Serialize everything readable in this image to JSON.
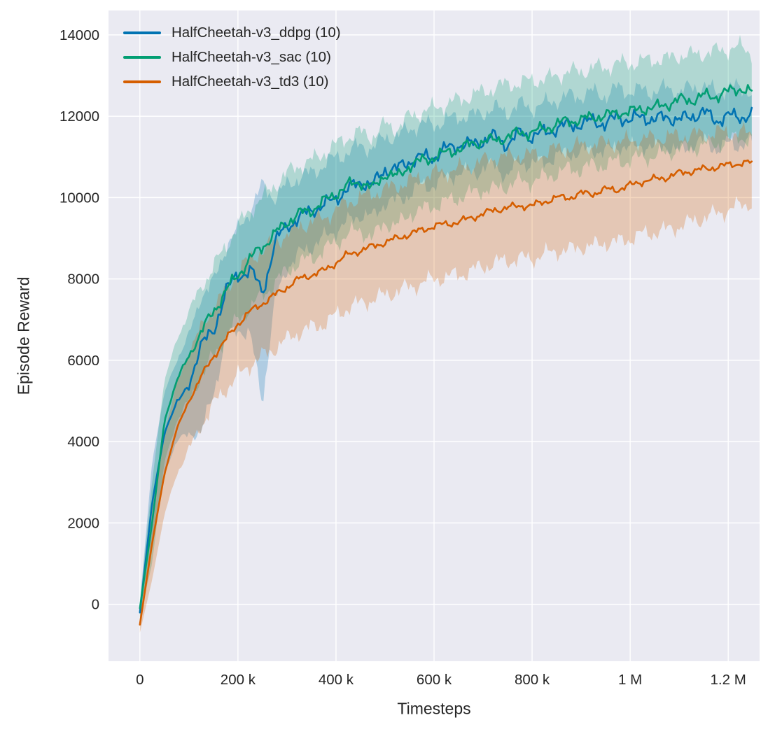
{
  "figure": {
    "background": "#ffffff",
    "plot_background": "#eaeaf2",
    "grid_color": "#ffffff",
    "text_color": "#262626"
  },
  "chart_data": {
    "type": "line",
    "title": "",
    "xlabel": "Timesteps",
    "ylabel": "Episode Reward",
    "grid": true,
    "legend_position": "upper left",
    "xlim": [
      -64000,
      1264000
    ],
    "ylim": [
      -1400,
      14600
    ],
    "band_opacity": 0.25,
    "line_width": 2.6,
    "xticks": [
      {
        "v": 0,
        "label": "0"
      },
      {
        "v": 200000,
        "label": "200 k"
      },
      {
        "v": 400000,
        "label": "400 k"
      },
      {
        "v": 600000,
        "label": "600 k"
      },
      {
        "v": 800000,
        "label": "800 k"
      },
      {
        "v": 1000000,
        "label": "1 M"
      },
      {
        "v": 1200000,
        "label": "1.2 M"
      }
    ],
    "yticks": [
      {
        "v": 0,
        "label": "0"
      },
      {
        "v": 2000,
        "label": "2000"
      },
      {
        "v": 4000,
        "label": "4000"
      },
      {
        "v": 6000,
        "label": "6000"
      },
      {
        "v": 8000,
        "label": "8000"
      },
      {
        "v": 10000,
        "label": "10000"
      },
      {
        "v": 12000,
        "label": "12000"
      },
      {
        "v": 14000,
        "label": "14000"
      }
    ],
    "x": [
      0,
      25000,
      50000,
      75000,
      100000,
      125000,
      150000,
      175000,
      200000,
      225000,
      250000,
      275000,
      300000,
      325000,
      350000,
      375000,
      400000,
      425000,
      450000,
      475000,
      500000,
      525000,
      550000,
      575000,
      600000,
      625000,
      650000,
      675000,
      700000,
      725000,
      750000,
      775000,
      800000,
      825000,
      850000,
      875000,
      900000,
      925000,
      950000,
      975000,
      1000000,
      1025000,
      1050000,
      1075000,
      1100000,
      1125000,
      1150000,
      1175000,
      1200000,
      1225000,
      1250000
    ],
    "series": [
      {
        "name": "HalfCheetah-v3_ddpg (10)",
        "color": "#0173B2",
        "noise": 110,
        "mean": [
          -200,
          2500,
          4200,
          5000,
          5300,
          6500,
          6600,
          7800,
          8000,
          8300,
          7600,
          8900,
          9300,
          9500,
          9700,
          9800,
          10000,
          10200,
          10400,
          10300,
          10700,
          10700,
          10900,
          11000,
          11000,
          11200,
          11300,
          11300,
          11400,
          11500,
          11300,
          11600,
          11500,
          11600,
          11700,
          11800,
          11800,
          11900,
          11800,
          12000,
          11900,
          12000,
          11900,
          12000,
          11900,
          12000,
          12100,
          11900,
          12000,
          12000,
          12000
        ],
        "lo": [
          -400,
          1500,
          3200,
          4000,
          4200,
          4200,
          5200,
          6500,
          6800,
          6600,
          5000,
          7400,
          8300,
          8600,
          8800,
          9000,
          9200,
          9400,
          9600,
          9500,
          9900,
          9900,
          10100,
          10300,
          10300,
          10500,
          10600,
          10600,
          10700,
          10800,
          10500,
          10900,
          10800,
          10900,
          11000,
          11100,
          11100,
          11200,
          11100,
          11300,
          11200,
          11300,
          11200,
          11300,
          11100,
          11300,
          11400,
          11200,
          11300,
          11300,
          11400
        ],
        "hi": [
          0,
          3500,
          5200,
          6000,
          6600,
          7600,
          7900,
          8800,
          9200,
          9700,
          10300,
          10000,
          10300,
          10500,
          10600,
          10800,
          11000,
          11100,
          11300,
          11200,
          11500,
          11500,
          11700,
          11800,
          11800,
          11900,
          12000,
          12000,
          12100,
          12200,
          12100,
          12300,
          12200,
          12300,
          12400,
          12500,
          12500,
          12600,
          12500,
          12700,
          12600,
          12650,
          12600,
          12700,
          12600,
          12700,
          12750,
          12600,
          12700,
          12700,
          12600
        ]
      },
      {
        "name": "HalfCheetah-v3_sac (10)",
        "color": "#029E73",
        "noise": 95,
        "mean": [
          -100,
          2000,
          4500,
          5500,
          6100,
          6700,
          7200,
          7700,
          8100,
          8500,
          8800,
          9100,
          9400,
          9600,
          9700,
          9900,
          10100,
          10300,
          10400,
          10200,
          10600,
          10500,
          10800,
          10900,
          11000,
          11100,
          11200,
          11300,
          11400,
          11400,
          11500,
          11600,
          11600,
          11700,
          11800,
          11900,
          11900,
          12000,
          12000,
          12100,
          12100,
          12200,
          12200,
          12300,
          12400,
          12400,
          12500,
          12500,
          12600,
          12700,
          12550
        ],
        "lo": [
          -300,
          1000,
          3500,
          4500,
          5000,
          5600,
          6100,
          6600,
          7000,
          7300,
          7600,
          7900,
          8200,
          8400,
          8500,
          8700,
          8900,
          9100,
          9200,
          9000,
          9400,
          9300,
          9600,
          9700,
          9800,
          9900,
          10000,
          10100,
          10200,
          10200,
          10300,
          10400,
          10400,
          10500,
          10600,
          10700,
          10700,
          10800,
          10800,
          10900,
          10900,
          11000,
          11000,
          11100,
          11200,
          11200,
          11300,
          11300,
          11400,
          11500,
          11400
        ],
        "hi": [
          100,
          3000,
          5500,
          6500,
          7200,
          7800,
          8300,
          8800,
          9300,
          9700,
          10000,
          10300,
          10600,
          10800,
          10900,
          11100,
          11300,
          11500,
          11600,
          11500,
          11800,
          11700,
          12000,
          12100,
          12200,
          12300,
          12400,
          12500,
          12600,
          12700,
          12800,
          12800,
          12900,
          12900,
          13000,
          13100,
          13100,
          13200,
          13200,
          13300,
          13300,
          13350,
          13400,
          13400,
          13500,
          13500,
          13550,
          13600,
          13650,
          13700,
          13550
        ]
      },
      {
        "name": "HalfCheetah-v3_td3 (10)",
        "color": "#D55E00",
        "noise": 55,
        "mean": [
          -500,
          1500,
          3200,
          4300,
          5000,
          5600,
          6100,
          6500,
          6900,
          7200,
          7400,
          7600,
          7800,
          8000,
          8100,
          8200,
          8400,
          8600,
          8700,
          8800,
          8900,
          9000,
          9100,
          9200,
          9300,
          9350,
          9400,
          9500,
          9600,
          9700,
          9750,
          9800,
          9800,
          9900,
          10000,
          10000,
          10100,
          10100,
          10200,
          10200,
          10300,
          10400,
          10450,
          10500,
          10600,
          10650,
          10700,
          10750,
          10800,
          10850,
          10850
        ],
        "lo": [
          -700,
          600,
          2200,
          3200,
          3800,
          4400,
          4900,
          5300,
          5600,
          5900,
          6100,
          6300,
          6500,
          6700,
          6800,
          6900,
          7100,
          7300,
          7400,
          7500,
          7600,
          7700,
          7800,
          7900,
          8000,
          8050,
          8100,
          8200,
          8300,
          8400,
          8450,
          8500,
          8500,
          8600,
          8700,
          8700,
          8800,
          8800,
          8900,
          8900,
          9000,
          9100,
          9150,
          9200,
          9300,
          9400,
          9500,
          9600,
          9700,
          9800,
          9900
        ],
        "hi": [
          -300,
          2400,
          4200,
          5400,
          6200,
          6800,
          7300,
          7700,
          8200,
          8500,
          8700,
          8900,
          9100,
          9300,
          9400,
          9500,
          9700,
          9900,
          10000,
          10100,
          10200,
          10300,
          10400,
          10500,
          10600,
          10650,
          10700,
          10800,
          10900,
          11000,
          11000,
          11050,
          11050,
          11100,
          11200,
          11200,
          11300,
          11300,
          11350,
          11350,
          11400,
          11450,
          11450,
          11500,
          11500,
          11550,
          11550,
          11600,
          11600,
          11600,
          11550
        ]
      }
    ]
  }
}
